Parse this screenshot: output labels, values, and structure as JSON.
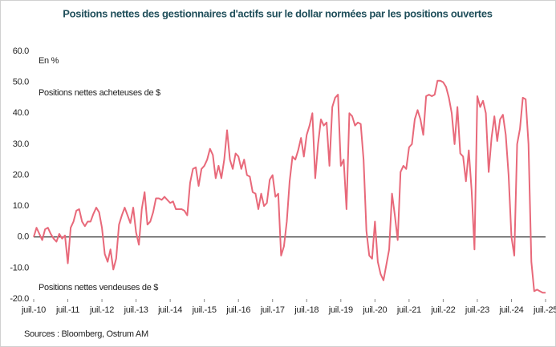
{
  "chart_data": {
    "type": "line",
    "title": "Positions nettes des gestionnaires d'actifs sur le dollar normées par les positions ouvertes",
    "unit_label": "En %",
    "annotations": [
      "Positions nettes acheteuses de $",
      "Positions nettes vendeuses de $"
    ],
    "source": "Sources : Bloomberg, Ostrum AM",
    "categories": [
      "juil.-10",
      null,
      null,
      null,
      null,
      null,
      null,
      null,
      null,
      null,
      null,
      null,
      "juil.-11",
      null,
      null,
      null,
      null,
      null,
      null,
      null,
      null,
      null,
      null,
      null,
      "juil.-12",
      null,
      null,
      null,
      null,
      null,
      null,
      null,
      null,
      null,
      null,
      null,
      "juil.-13",
      null,
      null,
      null,
      null,
      null,
      null,
      null,
      null,
      null,
      null,
      null,
      "juil.-14",
      null,
      null,
      null,
      null,
      null,
      null,
      null,
      null,
      null,
      null,
      null,
      "juil.-15",
      null,
      null,
      null,
      null,
      null,
      null,
      null,
      null,
      null,
      null,
      null,
      "juil.-16",
      null,
      null,
      null,
      null,
      null,
      null,
      null,
      null,
      null,
      null,
      null,
      "juil.-17",
      null,
      null,
      null,
      null,
      null,
      null,
      null,
      null,
      null,
      null,
      null,
      "juil.-18",
      null,
      null,
      null,
      null,
      null,
      null,
      null,
      null,
      null,
      null,
      null,
      "juil.-19",
      null,
      null,
      null,
      null,
      null,
      null,
      null,
      null,
      null,
      null,
      null,
      "juil.-20",
      null,
      null,
      null,
      null,
      null,
      null,
      null,
      null,
      null,
      null,
      null,
      "juil.-21",
      null,
      null,
      null,
      null,
      null,
      null,
      null,
      null,
      null,
      null,
      null,
      "juil.-22",
      null,
      null,
      null,
      null,
      null,
      null,
      null,
      null,
      null,
      null,
      null,
      "juil.-23",
      null,
      null,
      null,
      null,
      null,
      null,
      null,
      null,
      null,
      null,
      null,
      "juil.-24",
      null,
      null,
      null,
      null,
      null,
      null,
      null,
      null,
      null,
      null,
      null,
      "juil.-25"
    ],
    "series": [
      {
        "color": "#e8697a",
        "values": [
          0,
          3,
          1,
          -1,
          2.5,
          3,
          1,
          -0.5,
          -1.5,
          1,
          -0.5,
          0.5,
          -8.5,
          3,
          5,
          8.5,
          9,
          5,
          3.5,
          5,
          5,
          7.5,
          9.5,
          8,
          3,
          -5.5,
          -8,
          -4,
          -10.5,
          -7,
          4,
          7,
          9.5,
          7,
          4.5,
          9.5,
          1.5,
          -2.5,
          9,
          14.5,
          4,
          5,
          8,
          12.5,
          12.5,
          12,
          13,
          12,
          11,
          11.5,
          9,
          9,
          9,
          8.5,
          7,
          17.5,
          22,
          22.5,
          16.5,
          22,
          23,
          25,
          28.5,
          26.5,
          19,
          23,
          19,
          25,
          34.5,
          25,
          22,
          27,
          26,
          22,
          25,
          20,
          19.5,
          14.5,
          14,
          9,
          14,
          10,
          11,
          18.5,
          20,
          13,
          14,
          -6,
          -3,
          5,
          18,
          26,
          25,
          28,
          32,
          26,
          33,
          36,
          40,
          19,
          30,
          38,
          36,
          37,
          23,
          42,
          45,
          46,
          23,
          25,
          9,
          40,
          39,
          36,
          37,
          36.5,
          25,
          2,
          -6,
          -7,
          5,
          -8,
          -12,
          -14,
          -9,
          -4,
          14,
          7,
          -1,
          21,
          23,
          22,
          29,
          30,
          38,
          41,
          38,
          33,
          45.5,
          46,
          45.5,
          46,
          50.5,
          50.5,
          50,
          48.5,
          45,
          40,
          30,
          42,
          27,
          26,
          18,
          28,
          15,
          -4,
          45.5,
          42,
          44,
          40,
          21,
          32,
          39,
          31,
          38,
          39.5,
          33,
          20,
          0,
          -6,
          30,
          35,
          45,
          44.5,
          30,
          -8,
          -17.5,
          -17,
          -17.5,
          -18,
          -18
        ]
      }
    ],
    "ylim": [
      -20,
      60
    ],
    "yticks": [
      {
        "value": -20,
        "label": "-20.0"
      },
      {
        "value": -10,
        "label": "-10.0"
      },
      {
        "value": 0,
        "label": "0.0"
      },
      {
        "value": 10,
        "label": "10.0"
      },
      {
        "value": 20,
        "label": "20.0"
      },
      {
        "value": 30,
        "label": "30.0"
      },
      {
        "value": 40,
        "label": "40.0"
      },
      {
        "value": 50,
        "label": "50.0"
      },
      {
        "value": 60,
        "label": "60.0"
      }
    ],
    "grid": false
  }
}
